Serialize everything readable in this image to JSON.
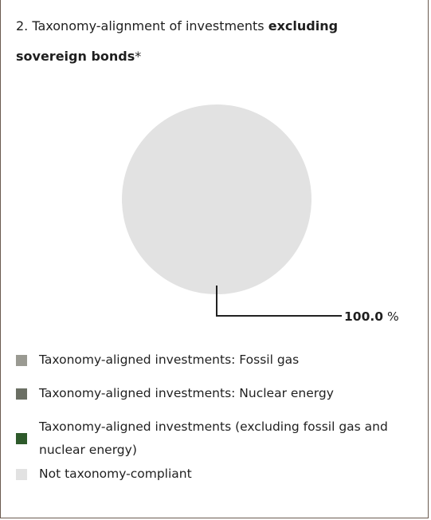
{
  "title": {
    "prefix": "2. Taxonomy-alignment of investments ",
    "bold": "excluding sovereign bonds",
    "suffix": "*"
  },
  "chart_data": {
    "type": "pie",
    "categories": [
      "Taxonomy-aligned investments: Fossil gas",
      "Taxonomy-aligned investments: Nuclear energy",
      "Taxonomy-aligned investments (excluding fossil gas and nuclear energy)",
      "Not taxonomy-compliant"
    ],
    "values": [
      0,
      0,
      0,
      100.0
    ],
    "colors": [
      "#9a9a92",
      "#6b6f64",
      "#2e5a2b",
      "#e2e2e2"
    ],
    "data_labels": [
      "",
      "",
      "",
      "100.0"
    ],
    "unit": "%",
    "legend": "bottom"
  }
}
